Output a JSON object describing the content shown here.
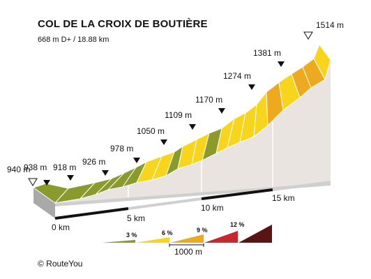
{
  "title": "COL DE LA CROIX DE BOUTIÈRE",
  "subtitle": "668 m D+ / 18.88 km",
  "copyright": "© RouteYou",
  "altitudes": [
    "940 m",
    "938 m",
    "918 m",
    "926 m",
    "978 m",
    "1050 m",
    "1109 m",
    "1170 m",
    "1274 m",
    "1381 m",
    "1514 m"
  ],
  "distance_labels": [
    "0 km",
    "5 km",
    "10 km",
    "15 km"
  ],
  "legend": {
    "grades": [
      "3 %",
      "6 %",
      "9 %",
      "12 %"
    ],
    "scale_label": "1000 m",
    "colors": [
      "#8a9a2c",
      "#f7d51c",
      "#eeaa1e",
      "#c8282b",
      "#5a1414"
    ]
  },
  "colors": {
    "olive": "#8a9a2c",
    "yellow": "#f7d51c",
    "orange": "#eeaa1e",
    "side": "#e9e4df",
    "base": "#cdcdcd"
  }
}
